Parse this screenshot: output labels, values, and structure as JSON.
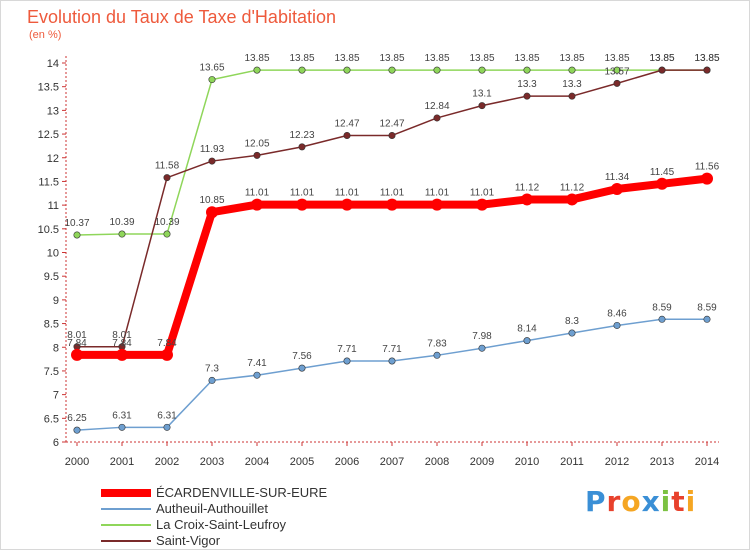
{
  "header": {
    "title": "Evolution du Taux de Taxe d'Habitation",
    "unit": "(en %)"
  },
  "brand": {
    "text": "Proxiti",
    "letters": [
      {
        "ch": "P",
        "color": "#3a8fd6"
      },
      {
        "ch": "r",
        "color": "#e8412c"
      },
      {
        "ch": "o",
        "color": "#f5a623"
      },
      {
        "ch": "x",
        "color": "#3a8fd6"
      },
      {
        "ch": "i",
        "color": "#7cc242"
      },
      {
        "ch": "t",
        "color": "#e8412c"
      },
      {
        "ch": "i",
        "color": "#f5a623"
      }
    ]
  },
  "chart_data": {
    "type": "line",
    "title": "Evolution du Taux de Taxe d'Habitation",
    "ylabel": "(en %)",
    "xlabel": "",
    "x": [
      "2000",
      "2001",
      "2002",
      "2003",
      "2004",
      "2005",
      "2006",
      "2007",
      "2008",
      "2009",
      "2010",
      "2011",
      "2012",
      "2013",
      "2014"
    ],
    "ylim": [
      6,
      14
    ],
    "yticks": [
      "6",
      "6.5",
      "7",
      "7.5",
      "8",
      "8.5",
      "9",
      "9.5",
      "10",
      "10.5",
      "11",
      "11.5",
      "12",
      "12.5",
      "13",
      "13.5",
      "14"
    ],
    "grid": false,
    "legend_position": "bottom-left",
    "series": [
      {
        "name": "ÉCARDENVILLE-SUR-EURE",
        "color": "#ff0000",
        "emphasis": true,
        "values": [
          7.84,
          7.84,
          7.84,
          10.85,
          11.01,
          11.01,
          11.01,
          11.01,
          11.01,
          11.01,
          11.12,
          11.12,
          11.34,
          11.45,
          11.56
        ],
        "labels": [
          "7.84",
          "7.84",
          "7.84",
          "10.85",
          "11.01",
          "11.01",
          "11.01",
          "11.01",
          "11.01",
          "11.01",
          "11.12",
          "11.12",
          "11.34",
          "11.45",
          "11.56"
        ]
      },
      {
        "name": "Autheuil-Authouillet",
        "color": "#6e9fd0",
        "values": [
          6.25,
          6.31,
          6.31,
          7.3,
          7.41,
          7.56,
          7.71,
          7.71,
          7.83,
          7.98,
          8.14,
          8.3,
          8.46,
          8.59,
          8.59
        ],
        "labels": [
          "6.25",
          "6.31",
          "6.31",
          "7.3",
          "7.41",
          "7.56",
          "7.71",
          "7.71",
          "7.83",
          "7.98",
          "8.14",
          "8.3",
          "8.46",
          "8.59",
          "8.59"
        ]
      },
      {
        "name": "La Croix-Saint-Leufroy",
        "color": "#8fd65a",
        "values": [
          10.37,
          10.39,
          10.39,
          13.65,
          13.85,
          13.85,
          13.85,
          13.85,
          13.85,
          13.85,
          13.85,
          13.85,
          13.85,
          13.85,
          13.85
        ],
        "labels": [
          "10.37",
          "10.39",
          "10.39",
          "13.65",
          "13.85",
          "13.85",
          "13.85",
          "13.85",
          "13.85",
          "13.85",
          "13.85",
          "13.85",
          "13.85",
          "13.85",
          "13.85"
        ]
      },
      {
        "name": "Saint-Vigor",
        "color": "#7a2a2a",
        "values": [
          8.01,
          8.01,
          11.58,
          11.93,
          12.05,
          12.23,
          12.47,
          12.47,
          12.84,
          13.1,
          13.3,
          13.3,
          13.57,
          13.85,
          13.85
        ],
        "labels": [
          "8.01",
          "8.01",
          "11.58",
          "11.93",
          "12.05",
          "12.23",
          "12.47",
          "12.47",
          "12.84",
          "13.1",
          "13.3",
          "13.3",
          "13.57",
          "13.85",
          "13.85"
        ]
      }
    ]
  }
}
